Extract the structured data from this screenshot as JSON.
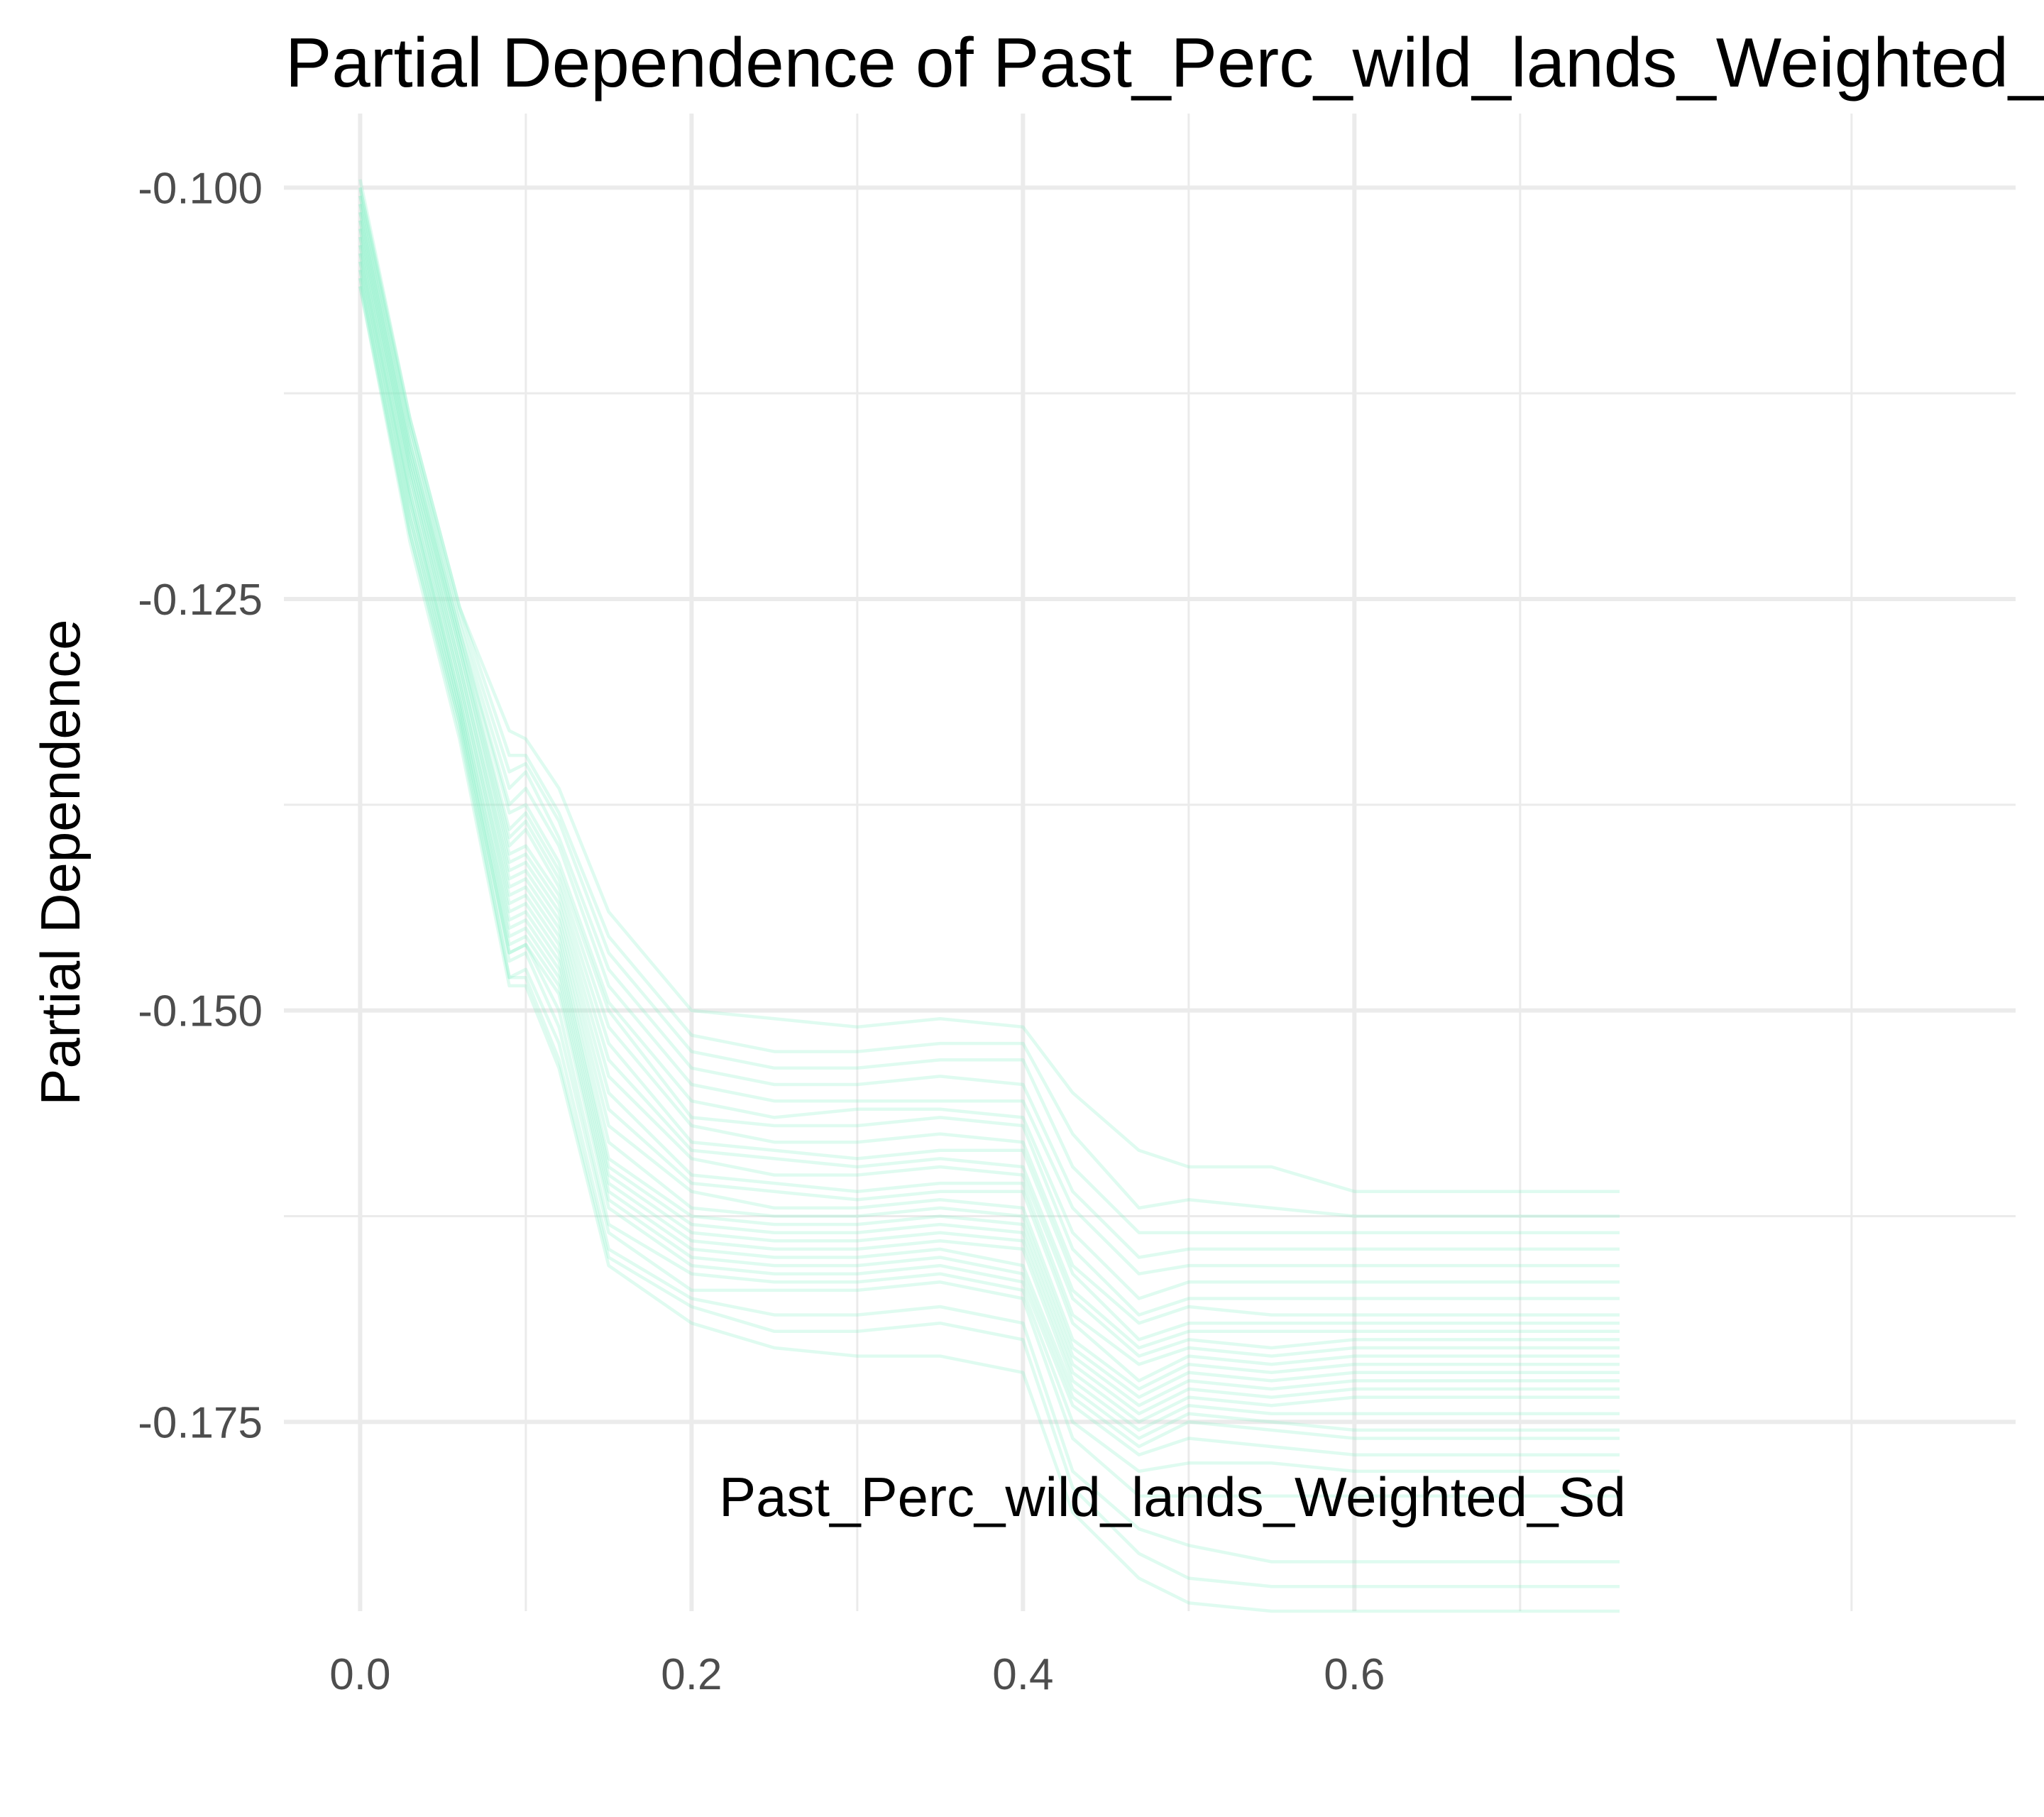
{
  "chart_data": {
    "type": "line",
    "title": "Partial Dependence of Past_Perc_wild_lands_Weighted_Sd",
    "xlabel": "Past_Perc_wild_lands_Weighted_Sd",
    "ylabel": "Partial Dependence",
    "xlim": [
      -0.046,
      0.999
    ],
    "ylim": [
      -0.1865,
      -0.0955
    ],
    "x_ticks": [
      0.0,
      0.2,
      0.4,
      0.6
    ],
    "x_tick_labels": [
      "0.0",
      "0.2",
      "0.4",
      "0.6"
    ],
    "y_ticks": [
      -0.175,
      -0.15,
      -0.125,
      -0.1
    ],
    "y_tick_labels": [
      "-0.175",
      "-0.150",
      "-0.125",
      "-0.100"
    ],
    "grid": true,
    "legend": "none",
    "line_color": "#7fefc5",
    "line_opacity": 0.25,
    "x": [
      0.0,
      0.03,
      0.06,
      0.09,
      0.1,
      0.12,
      0.15,
      0.2,
      0.25,
      0.3,
      0.35,
      0.4,
      0.43,
      0.47,
      0.5,
      0.55,
      0.6,
      0.76
    ],
    "series": [
      {
        "values": [
          -0.0995,
          -0.114,
          -0.1255,
          -0.133,
          -0.1335,
          -0.1365,
          -0.144,
          -0.15,
          -0.1505,
          -0.151,
          -0.1505,
          -0.151,
          -0.155,
          -0.1585,
          -0.1595,
          -0.1595,
          -0.161,
          -0.161
        ]
      },
      {
        "values": [
          -0.1,
          -0.114,
          -0.1255,
          -0.1345,
          -0.1345,
          -0.138,
          -0.1455,
          -0.1515,
          -0.1525,
          -0.1525,
          -0.152,
          -0.152,
          -0.1575,
          -0.162,
          -0.1615,
          -0.162,
          -0.1625,
          -0.1625
        ]
      },
      {
        "values": [
          -0.1,
          -0.1145,
          -0.126,
          -0.1355,
          -0.135,
          -0.1385,
          -0.1465,
          -0.1525,
          -0.1535,
          -0.1535,
          -0.153,
          -0.153,
          -0.1595,
          -0.1635,
          -0.1635,
          -0.1635,
          -0.1635,
          -0.1635
        ]
      },
      {
        "values": [
          -0.1005,
          -0.1145,
          -0.1265,
          -0.1365,
          -0.1355,
          -0.1395,
          -0.1475,
          -0.1535,
          -0.1545,
          -0.1545,
          -0.154,
          -0.1545,
          -0.161,
          -0.165,
          -0.1645,
          -0.1645,
          -0.1645,
          -0.1645
        ]
      },
      {
        "values": [
          -0.1005,
          -0.115,
          -0.127,
          -0.1375,
          -0.1365,
          -0.14,
          -0.1485,
          -0.1545,
          -0.1555,
          -0.1555,
          -0.1555,
          -0.1555,
          -0.162,
          -0.166,
          -0.1655,
          -0.1655,
          -0.1655,
          -0.1655
        ]
      },
      {
        "values": [
          -0.101,
          -0.1155,
          -0.127,
          -0.138,
          -0.1375,
          -0.141,
          -0.1495,
          -0.1555,
          -0.1565,
          -0.156,
          -0.156,
          -0.1565,
          -0.1635,
          -0.1675,
          -0.1665,
          -0.1665,
          -0.1665,
          -0.1665
        ]
      },
      {
        "values": [
          -0.101,
          -0.1155,
          -0.1275,
          -0.139,
          -0.138,
          -0.1415,
          -0.15,
          -0.1565,
          -0.157,
          -0.157,
          -0.1565,
          -0.157,
          -0.1645,
          -0.1685,
          -0.1675,
          -0.1675,
          -0.1675,
          -0.1675
        ]
      },
      {
        "values": [
          -0.1015,
          -0.116,
          -0.1275,
          -0.1395,
          -0.1385,
          -0.142,
          -0.151,
          -0.157,
          -0.158,
          -0.158,
          -0.1575,
          -0.158,
          -0.1655,
          -0.169,
          -0.168,
          -0.1685,
          -0.1685,
          -0.1685
        ]
      },
      {
        "values": [
          -0.1015,
          -0.116,
          -0.128,
          -0.14,
          -0.139,
          -0.1425,
          -0.152,
          -0.158,
          -0.1585,
          -0.159,
          -0.1585,
          -0.1585,
          -0.166,
          -0.17,
          -0.169,
          -0.169,
          -0.169,
          -0.169
        ]
      },
      {
        "values": [
          -0.102,
          -0.1165,
          -0.128,
          -0.1405,
          -0.14,
          -0.143,
          -0.153,
          -0.1585,
          -0.159,
          -0.1595,
          -0.159,
          -0.1595,
          -0.167,
          -0.1705,
          -0.1695,
          -0.1695,
          -0.1695,
          -0.1695
        ]
      },
      {
        "values": [
          -0.102,
          -0.1165,
          -0.1285,
          -0.141,
          -0.1405,
          -0.1435,
          -0.154,
          -0.159,
          -0.16,
          -0.16,
          -0.1595,
          -0.16,
          -0.1675,
          -0.171,
          -0.17,
          -0.1705,
          -0.17,
          -0.17
        ]
      },
      {
        "values": [
          -0.1025,
          -0.117,
          -0.129,
          -0.1415,
          -0.141,
          -0.144,
          -0.155,
          -0.16,
          -0.1605,
          -0.161,
          -0.1605,
          -0.1605,
          -0.1685,
          -0.1715,
          -0.1705,
          -0.171,
          -0.1705,
          -0.1705
        ]
      },
      {
        "values": [
          -0.1025,
          -0.117,
          -0.129,
          -0.142,
          -0.1415,
          -0.1445,
          -0.156,
          -0.1605,
          -0.161,
          -0.1615,
          -0.161,
          -0.161,
          -0.169,
          -0.1725,
          -0.171,
          -0.1715,
          -0.171,
          -0.171
        ]
      },
      {
        "values": [
          -0.103,
          -0.1175,
          -0.1295,
          -0.1425,
          -0.142,
          -0.145,
          -0.157,
          -0.161,
          -0.162,
          -0.162,
          -0.1615,
          -0.162,
          -0.17,
          -0.173,
          -0.1715,
          -0.172,
          -0.1715,
          -0.1715
        ]
      },
      {
        "values": [
          -0.103,
          -0.1175,
          -0.13,
          -0.143,
          -0.1425,
          -0.1455,
          -0.158,
          -0.162,
          -0.1625,
          -0.1625,
          -0.162,
          -0.1625,
          -0.1705,
          -0.1735,
          -0.172,
          -0.1725,
          -0.172,
          -0.172
        ]
      },
      {
        "values": [
          -0.1035,
          -0.118,
          -0.13,
          -0.1435,
          -0.143,
          -0.146,
          -0.159,
          -0.1625,
          -0.163,
          -0.163,
          -0.1625,
          -0.163,
          -0.171,
          -0.174,
          -0.1725,
          -0.173,
          -0.1725,
          -0.1725
        ]
      },
      {
        "values": [
          -0.1035,
          -0.1185,
          -0.1305,
          -0.144,
          -0.1435,
          -0.1465,
          -0.1595,
          -0.163,
          -0.1635,
          -0.1635,
          -0.163,
          -0.1635,
          -0.1715,
          -0.1745,
          -0.173,
          -0.1735,
          -0.173,
          -0.173
        ]
      },
      {
        "values": [
          -0.104,
          -0.1185,
          -0.131,
          -0.1445,
          -0.144,
          -0.147,
          -0.16,
          -0.1635,
          -0.164,
          -0.164,
          -0.1635,
          -0.164,
          -0.172,
          -0.175,
          -0.1735,
          -0.174,
          -0.1735,
          -0.1735
        ]
      },
      {
        "values": [
          -0.104,
          -0.119,
          -0.131,
          -0.145,
          -0.1445,
          -0.1475,
          -0.1605,
          -0.164,
          -0.1645,
          -0.1645,
          -0.164,
          -0.1645,
          -0.1725,
          -0.1755,
          -0.174,
          -0.1745,
          -0.1745,
          -0.1745
        ]
      },
      {
        "values": [
          -0.1045,
          -0.119,
          -0.1315,
          -0.1455,
          -0.145,
          -0.148,
          -0.161,
          -0.1645,
          -0.165,
          -0.165,
          -0.1645,
          -0.1655,
          -0.173,
          -0.176,
          -0.1745,
          -0.175,
          -0.1755,
          -0.1755
        ]
      },
      {
        "values": [
          -0.1045,
          -0.1195,
          -0.1315,
          -0.146,
          -0.1455,
          -0.1485,
          -0.1615,
          -0.165,
          -0.1655,
          -0.1655,
          -0.165,
          -0.166,
          -0.1735,
          -0.1765,
          -0.175,
          -0.1755,
          -0.176,
          -0.176
        ]
      },
      {
        "values": [
          -0.105,
          -0.12,
          -0.132,
          -0.1465,
          -0.146,
          -0.149,
          -0.162,
          -0.1655,
          -0.166,
          -0.166,
          -0.1655,
          -0.1665,
          -0.174,
          -0.177,
          -0.176,
          -0.1765,
          -0.177,
          -0.177
        ]
      },
      {
        "values": [
          -0.105,
          -0.12,
          -0.132,
          -0.1465,
          -0.146,
          -0.15,
          -0.163,
          -0.166,
          -0.1665,
          -0.1665,
          -0.166,
          -0.167,
          -0.175,
          -0.178,
          -0.1775,
          -0.1775,
          -0.178,
          -0.178
        ]
      },
      {
        "values": [
          -0.1055,
          -0.1205,
          -0.1325,
          -0.147,
          -0.1465,
          -0.151,
          -0.1635,
          -0.167,
          -0.167,
          -0.167,
          -0.1665,
          -0.1675,
          -0.176,
          -0.1795,
          -0.1795,
          -0.1795,
          -0.1795,
          -0.1795
        ]
      },
      {
        "values": [
          -0.1055,
          -0.121,
          -0.1325,
          -0.148,
          -0.1475,
          -0.152,
          -0.1645,
          -0.1675,
          -0.1685,
          -0.1685,
          -0.168,
          -0.169,
          -0.178,
          -0.1815,
          -0.1825,
          -0.1835,
          -0.1835,
          -0.1835
        ]
      },
      {
        "values": [
          -0.106,
          -0.121,
          -0.133,
          -0.148,
          -0.148,
          -0.153,
          -0.165,
          -0.168,
          -0.1695,
          -0.1695,
          -0.169,
          -0.17,
          -0.179,
          -0.183,
          -0.1845,
          -0.185,
          -0.185,
          -0.185
        ]
      },
      {
        "values": [
          -0.106,
          -0.1215,
          -0.1335,
          -0.1485,
          -0.1485,
          -0.1535,
          -0.1655,
          -0.169,
          -0.1705,
          -0.171,
          -0.171,
          -0.172,
          -0.1805,
          -0.1845,
          -0.186,
          -0.1865,
          -0.1865,
          -0.1865
        ]
      }
    ]
  }
}
